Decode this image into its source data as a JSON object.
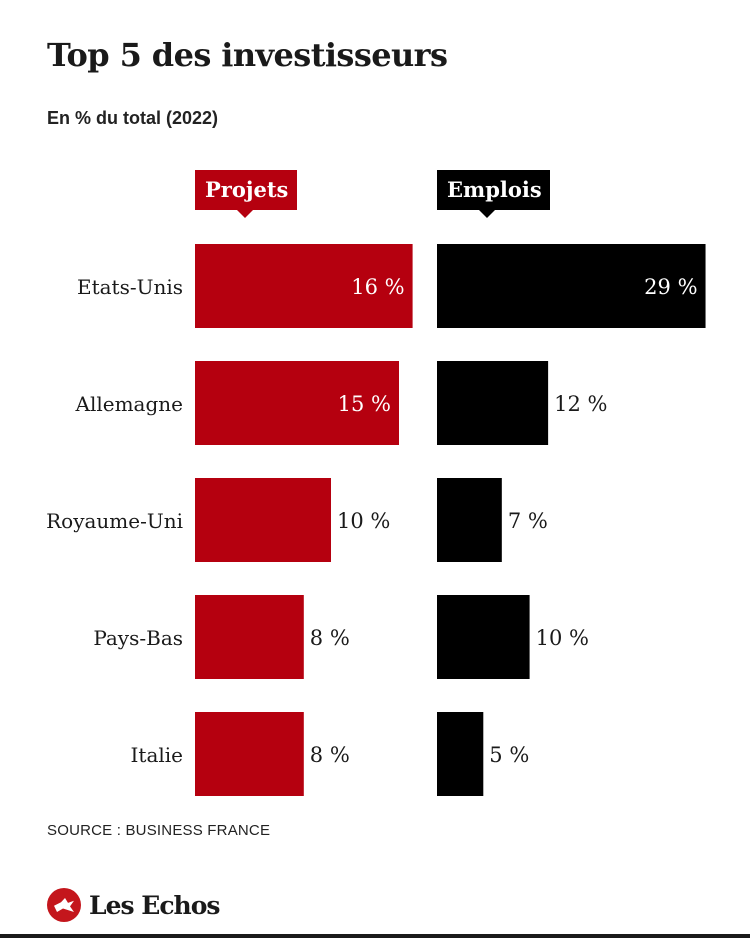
{
  "title": "Top 5 des investisseurs",
  "subtitle": "En % du total (2022)",
  "source": "SOURCE : BUSINESS FRANCE",
  "logo": {
    "text": "Les Echos"
  },
  "colors": {
    "projets": "#b5000f",
    "emplois": "#000000",
    "label_inside": "#ffffff",
    "label_outside": "#1a1a1a"
  },
  "chart_data": {
    "type": "bar",
    "orientation": "horizontal",
    "categories": [
      "Etats-Unis",
      "Allemagne",
      "Royaume-Uni",
      "Pays-Bas",
      "Italie"
    ],
    "series": [
      {
        "name": "Projets",
        "values": [
          16,
          15,
          10,
          8,
          8
        ],
        "labels": [
          "16 %",
          "15 %",
          "10 %",
          "8 %",
          "8 %"
        ]
      },
      {
        "name": "Emplois",
        "values": [
          29,
          12,
          7,
          10,
          5
        ],
        "labels": [
          "29 %",
          "12 %",
          "7 %",
          "10 %",
          "5 %"
        ]
      }
    ],
    "unit": "%",
    "grid": false,
    "legend": "top, above each series column"
  }
}
